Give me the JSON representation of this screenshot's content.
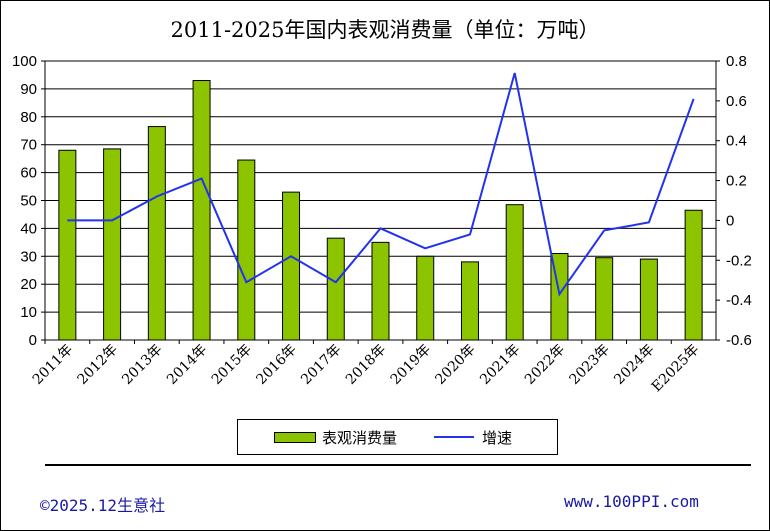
{
  "chart_data": {
    "type": "bar",
    "title": "2011-2025年国内表观消费量（单位：万吨）",
    "categories": [
      "2011年",
      "2012年",
      "2013年",
      "2014年",
      "2015年",
      "2016年",
      "2017年",
      "2018年",
      "2019年",
      "2020年",
      "2021年",
      "2022年",
      "2023年",
      "2024年",
      "E2025年"
    ],
    "series": [
      {
        "name": "表观消费量",
        "type": "bar",
        "axis": "left",
        "color": "#8cc400",
        "values": [
          68,
          68.5,
          76.5,
          93,
          64.5,
          53,
          36.5,
          35,
          30,
          28,
          48.5,
          31,
          29.5,
          29,
          46.5
        ]
      },
      {
        "name": "增速",
        "type": "line",
        "axis": "right",
        "color": "#2233ee",
        "values": [
          0.0,
          0.0,
          0.12,
          0.21,
          -0.31,
          -0.18,
          -0.31,
          -0.04,
          -0.14,
          -0.07,
          0.74,
          -0.37,
          -0.05,
          -0.01,
          0.61
        ]
      }
    ],
    "ylim_left": [
      0,
      100
    ],
    "yticks_left": [
      "0",
      "10",
      "20",
      "30",
      "40",
      "50",
      "60",
      "70",
      "80",
      "90",
      "100"
    ],
    "ylim_right": [
      -0.6,
      0.8
    ],
    "yticks_right": [
      "-0.6",
      "-0.4",
      "-0.2",
      "0",
      "0.2",
      "0.4",
      "0.6",
      "0.8"
    ],
    "grid": "horizontal",
    "legend_position": "bottom"
  },
  "legend": {
    "bar_label": "表观消费量",
    "line_label": "增速"
  },
  "footer": {
    "left": "©2025.12生意社",
    "right": "www.100PPI.com"
  }
}
